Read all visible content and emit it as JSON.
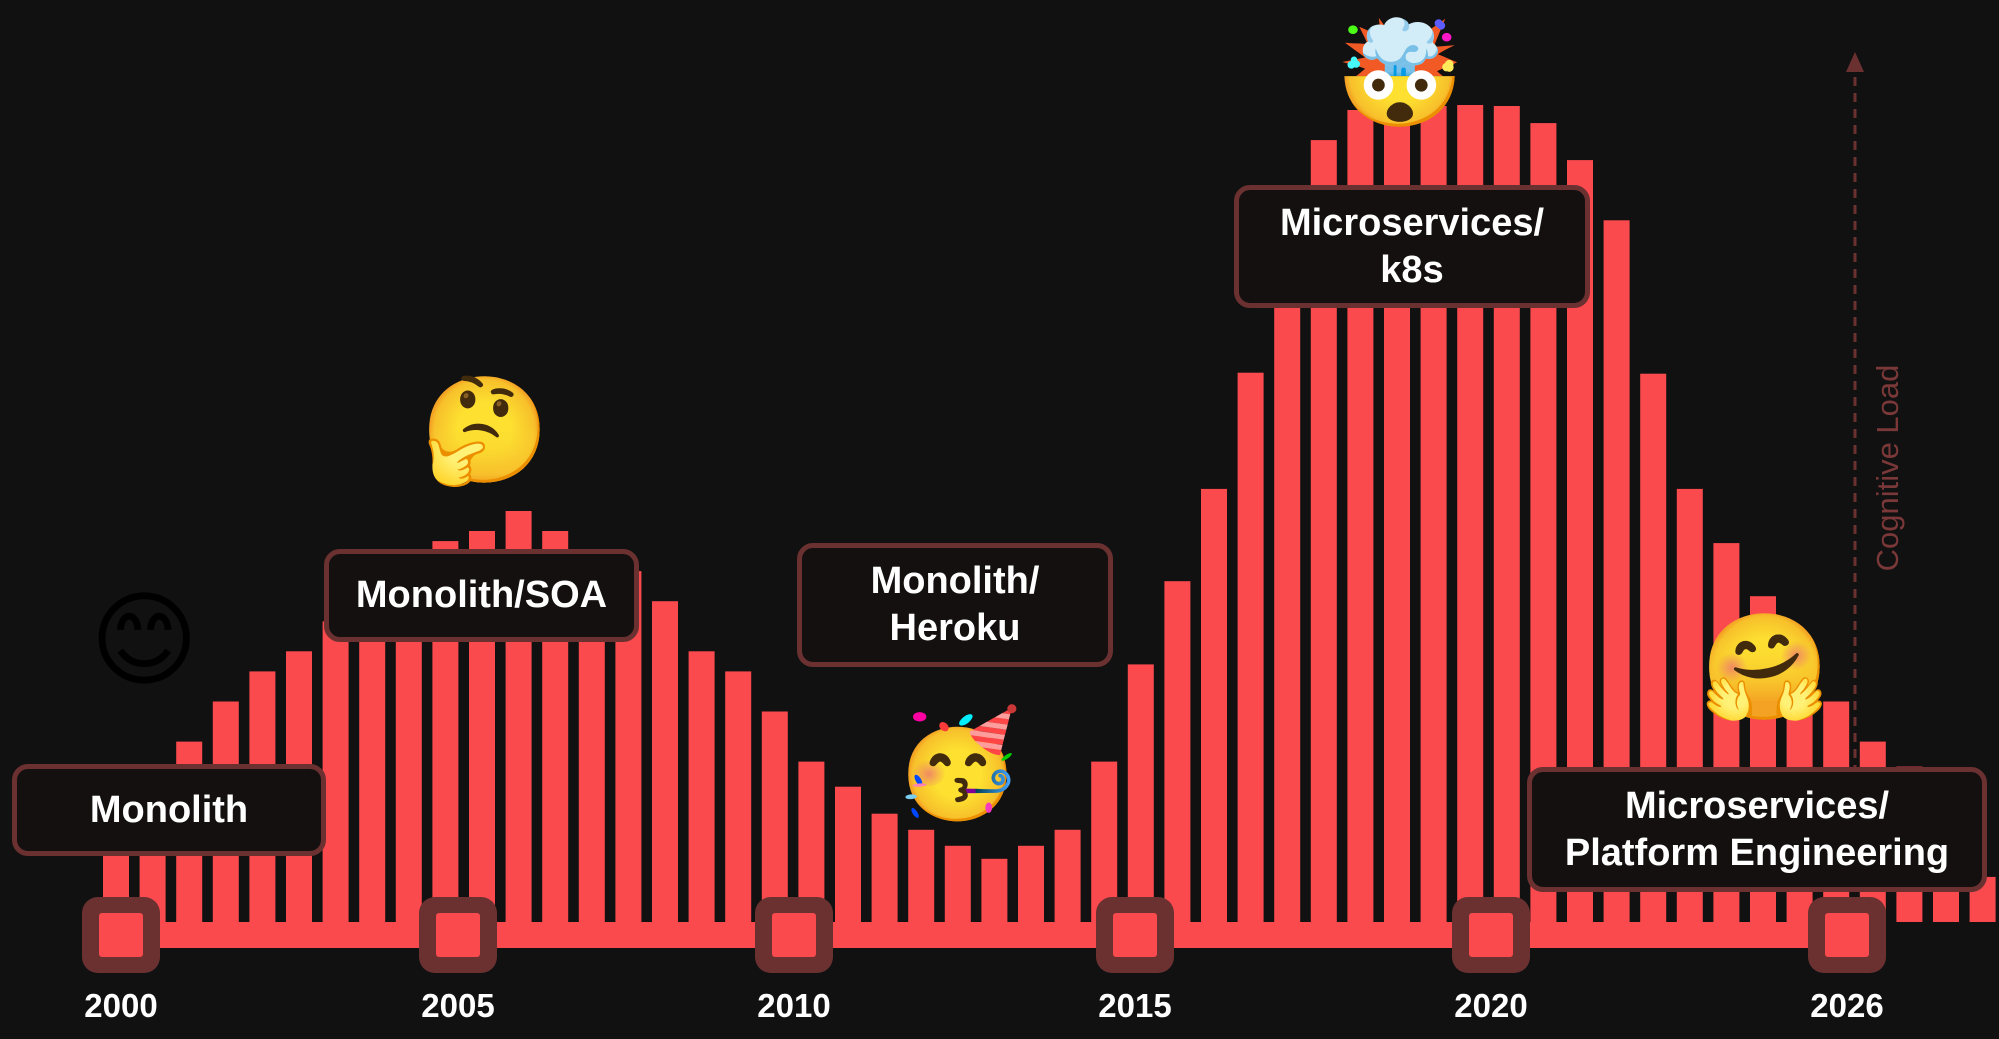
{
  "chart_data": {
    "type": "bar",
    "x": [
      2000,
      2000.5,
      2001,
      2001.5,
      2002,
      2002.5,
      2003,
      2003.5,
      2004,
      2004.5,
      2005,
      2005.5,
      2006,
      2006.5,
      2007,
      2007.5,
      2008,
      2008.5,
      2009,
      2009.5,
      2010,
      2010.5,
      2011,
      2011.5,
      2012,
      2012.5,
      2013,
      2013.5,
      2014,
      2014.5,
      2015,
      2015.5,
      2016,
      2016.5,
      2017,
      2017.5,
      2018,
      2018.5,
      2019,
      2019.5,
      2020,
      2020.5,
      2021,
      2021.5,
      2022,
      2022.5,
      2023,
      2023.5,
      2024,
      2024.5,
      2025,
      2025.5
    ],
    "values": [
      90,
      110,
      180,
      220,
      250,
      270,
      300,
      350,
      370,
      380,
      390,
      410,
      390,
      370,
      350,
      320,
      270,
      250,
      210,
      160,
      135,
      108,
      92,
      76,
      63,
      76,
      92,
      160,
      257,
      340,
      432,
      548,
      660,
      780,
      810,
      813,
      814,
      815,
      814,
      797,
      760,
      700,
      547,
      432,
      378,
      325,
      270,
      220,
      180,
      155,
      95,
      45
    ],
    "ylim": [
      0,
      820
    ],
    "xlim": [
      2000,
      2026
    ],
    "ylabel": "Cognitive Load",
    "tick_labels": [
      "2000",
      "2005",
      "2010",
      "2015",
      "2020",
      "2026"
    ],
    "annotations": [
      {
        "id": "monolith",
        "lines": [
          "Monolith"
        ],
        "emoji": "😊"
      },
      {
        "id": "monolith-soa",
        "lines": [
          "Monolith/SOA"
        ],
        "emoji": "🤔"
      },
      {
        "id": "monolith-heroku",
        "lines": [
          "Monolith/",
          "Heroku"
        ],
        "emoji": "🥳"
      },
      {
        "id": "microservices-k8s",
        "lines": [
          "Microservices/",
          "k8s"
        ],
        "emoji": "🤯"
      },
      {
        "id": "microservices-platform",
        "lines": [
          "Microservices/",
          "Platform Engineering"
        ],
        "emoji": "🤗"
      }
    ],
    "grid": false,
    "legend": "none",
    "colors": {
      "bar": "#fa4a4e",
      "timeline": "#fa4a4e",
      "marker_outer": "#6b3131",
      "marker_inner": "#fa4a4e",
      "callout_border": "#6b3131",
      "callout_fill": "#141010",
      "axis_arrow": "#6b3131",
      "background": "#111111",
      "text": "#ffffff"
    }
  }
}
